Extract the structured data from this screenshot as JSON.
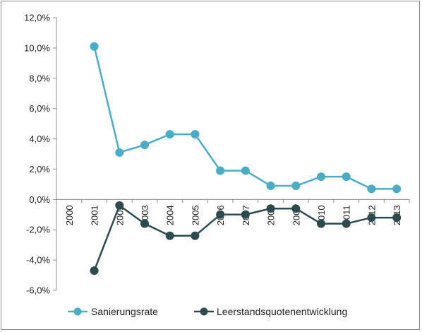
{
  "chart_data": {
    "type": "line",
    "title": "",
    "xlabel": "",
    "ylabel": "",
    "x": [
      "2000",
      "2001",
      "2002",
      "2003",
      "2004",
      "2005",
      "2006",
      "2007",
      "2008",
      "2009",
      "2010",
      "2011",
      "2012",
      "2013"
    ],
    "ylim": [
      -6.0,
      12.0
    ],
    "ytick_step": 2.0,
    "ytick_labels": [
      "-6,0%",
      "-4,0%",
      "-2,0%",
      "0,0%",
      "2,0%",
      "4,0%",
      "6,0%",
      "8,0%",
      "10,0%",
      "12,0%"
    ],
    "grid": false,
    "legend_position": "bottom",
    "series": [
      {
        "name": "Sanierungsrate",
        "color": "#4bacc6",
        "values": [
          null,
          10.1,
          3.1,
          3.6,
          4.3,
          4.3,
          1.9,
          1.9,
          0.9,
          0.9,
          1.5,
          1.5,
          0.7,
          0.7
        ]
      },
      {
        "name": "Leerstandsquotenentwicklung",
        "color": "#2e4a4f",
        "values": [
          null,
          -4.7,
          -0.4,
          -1.6,
          -2.4,
          -2.4,
          -1.0,
          -1.0,
          -0.6,
          -0.6,
          -1.6,
          -1.6,
          -1.2,
          -1.2
        ]
      }
    ]
  }
}
